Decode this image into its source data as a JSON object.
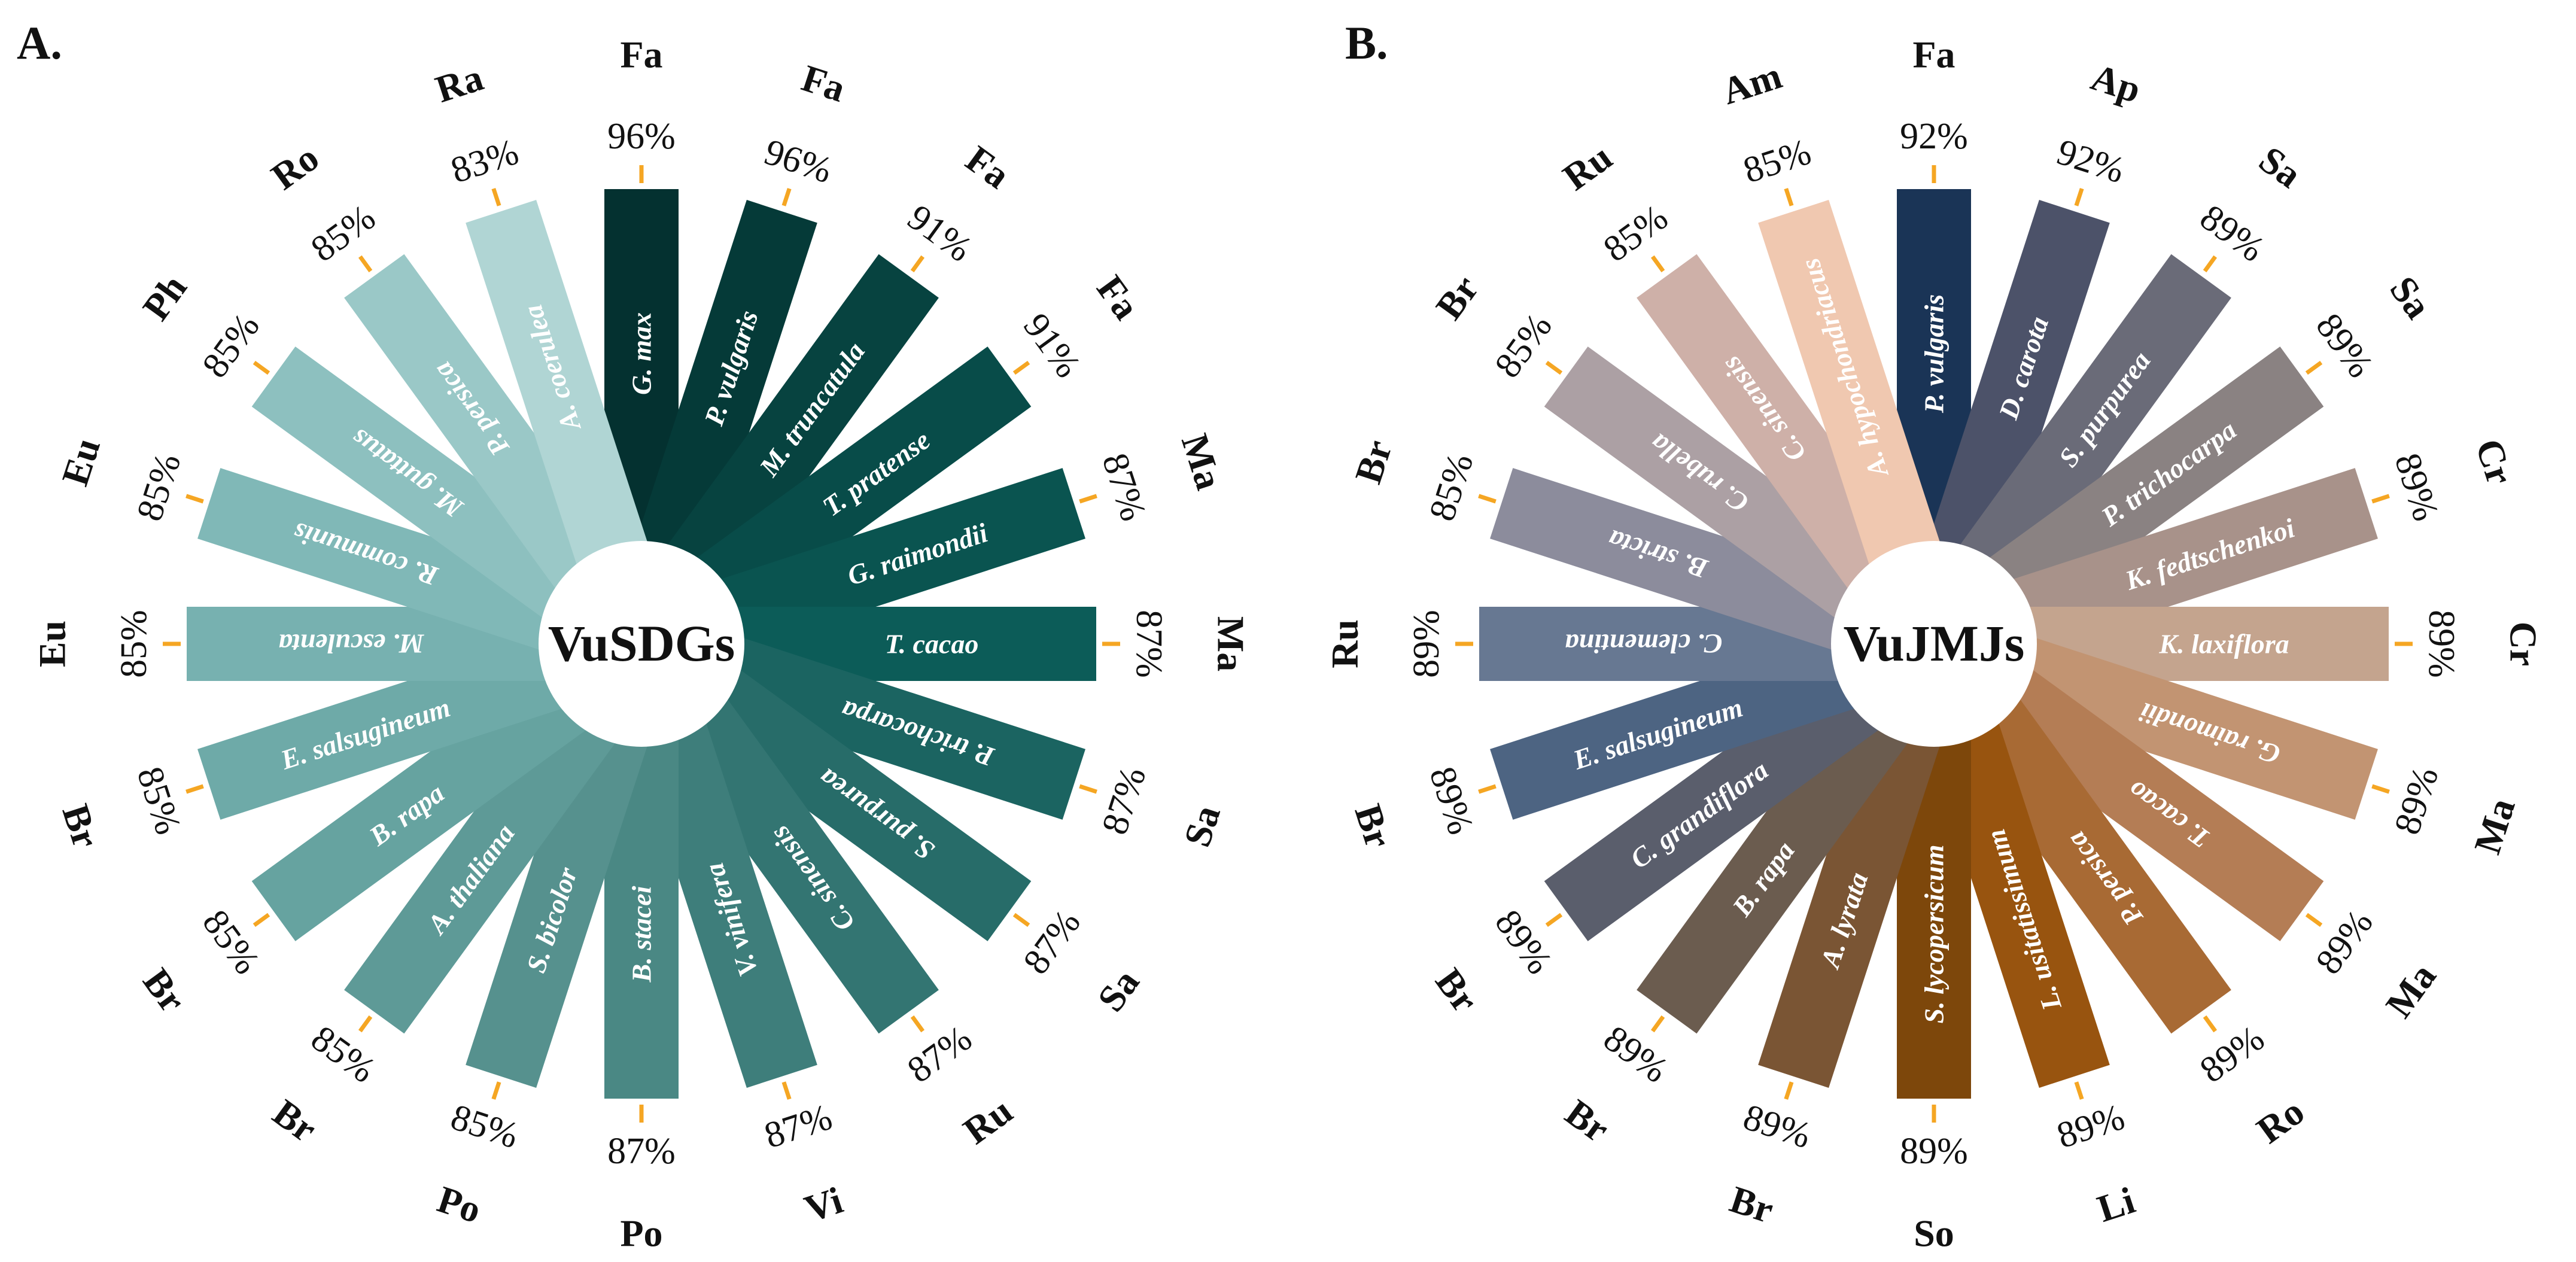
{
  "chart_data": [
    {
      "type": "radial_bar",
      "panel_label": "A.",
      "center_label": "VuSDGs",
      "value_unit": "%",
      "series": [
        {
          "species": "G. max",
          "family": "Fa",
          "value": 96,
          "color": "#043130"
        },
        {
          "species": "P. vulgaris",
          "family": "Fa",
          "value": 96,
          "color": "#053a38"
        },
        {
          "species": "M. truncatula",
          "family": "Fa",
          "value": 91,
          "color": "#074340"
        },
        {
          "species": "T. pratense",
          "family": "Fa",
          "value": 91,
          "color": "#084c49"
        },
        {
          "species": "G. raimondii",
          "family": "Ma",
          "value": 87,
          "color": "#0a5450"
        },
        {
          "species": "T. cacao",
          "family": "Ma",
          "value": 87,
          "color": "#0c5c58"
        },
        {
          "species": "P. trichocarpa",
          "family": "Sa",
          "value": 87,
          "color": "#1b6461"
        },
        {
          "species": "S. purpurea",
          "family": "Sa",
          "value": 87,
          "color": "#276c69"
        },
        {
          "species": "C. sinensis",
          "family": "Ru",
          "value": 87,
          "color": "#337572"
        },
        {
          "species": "V. vinifera",
          "family": "Vi",
          "value": 87,
          "color": "#3e7e7b"
        },
        {
          "species": "B. stacei",
          "family": "Po",
          "value": 87,
          "color": "#4a8884"
        },
        {
          "species": "S. bicolor",
          "family": "Po",
          "value": 85,
          "color": "#56918e"
        },
        {
          "species": "A. thaliana",
          "family": "Br",
          "value": 85,
          "color": "#5e9a97"
        },
        {
          "species": "B. rapa",
          "family": "Br",
          "value": 85,
          "color": "#66a3a0"
        },
        {
          "species": "E. salsugineum",
          "family": "Br",
          "value": 85,
          "color": "#6eaaa8"
        },
        {
          "species": "M. esculenta",
          "family": "Eu",
          "value": 85,
          "color": "#77b1b0"
        },
        {
          "species": "R. communis",
          "family": "Eu",
          "value": 85,
          "color": "#80b8b7"
        },
        {
          "species": "M. guttatus",
          "family": "Ph",
          "value": 85,
          "color": "#8dc0bf"
        },
        {
          "species": "P. persica",
          "family": "Ro",
          "value": 85,
          "color": "#9ac8c7"
        },
        {
          "species": "A. coerulea",
          "family": "Ra",
          "value": 83,
          "color": "#b0d5d4"
        }
      ]
    },
    {
      "type": "radial_bar",
      "panel_label": "B.",
      "center_label": "VuJMJs",
      "value_unit": "%",
      "series": [
        {
          "species": "P. vulgaris",
          "family": "Fa",
          "value": 92,
          "color": "#1a3456"
        },
        {
          "species": "D. carota",
          "family": "Ap",
          "value": 92,
          "color": "#4c5269"
        },
        {
          "species": "S. purpurea",
          "family": "Sa",
          "value": 89,
          "color": "#6a6b78"
        },
        {
          "species": "P. trichocarpa",
          "family": "Sa",
          "value": 89,
          "color": "#8a8282"
        },
        {
          "species": "K. fedtschenkoi",
          "family": "Cr",
          "value": 89,
          "color": "#a8928a"
        },
        {
          "species": "K. laxiflora",
          "family": "Cr",
          "value": 89,
          "color": "#c4a48e"
        },
        {
          "species": "G. raimondii",
          "family": "Ma",
          "value": 89,
          "color": "#c29472"
        },
        {
          "species": "T. cacao",
          "family": "Ma",
          "value": 89,
          "color": "#b47d55"
        },
        {
          "species": "P. persica",
          "family": "Ro",
          "value": 89,
          "color": "#a86a34"
        },
        {
          "species": "L. usitatissimum",
          "family": "Li",
          "value": 89,
          "color": "#98540f"
        },
        {
          "species": "S. lycopersicum",
          "family": "So",
          "value": 89,
          "color": "#7d470b"
        },
        {
          "species": "A. lyrata",
          "family": "Br",
          "value": 89,
          "color": "#7a5534"
        },
        {
          "species": "B. rapa",
          "family": "Br",
          "value": 89,
          "color": "#6b5c4f"
        },
        {
          "species": "C. grandiflora",
          "family": "Br",
          "value": 89,
          "color": "#5a5e6c"
        },
        {
          "species": "E. salsugineum",
          "family": "Br",
          "value": 89,
          "color": "#4d6482"
        },
        {
          "species": "C. clementina",
          "family": "Ru",
          "value": 89,
          "color": "#677892"
        },
        {
          "species": "B. stricta",
          "family": "Br",
          "value": 85,
          "color": "#8c8c9c"
        },
        {
          "species": "C. rubella",
          "family": "Br",
          "value": 85,
          "color": "#aca0a4"
        },
        {
          "species": "C. sinensis",
          "family": "Ru",
          "value": 85,
          "color": "#ceb0a8"
        },
        {
          "species": "A. hypochondriacus",
          "family": "Am",
          "value": 85,
          "color": "#f0c8b0"
        }
      ]
    }
  ],
  "accent": "#f5a623"
}
